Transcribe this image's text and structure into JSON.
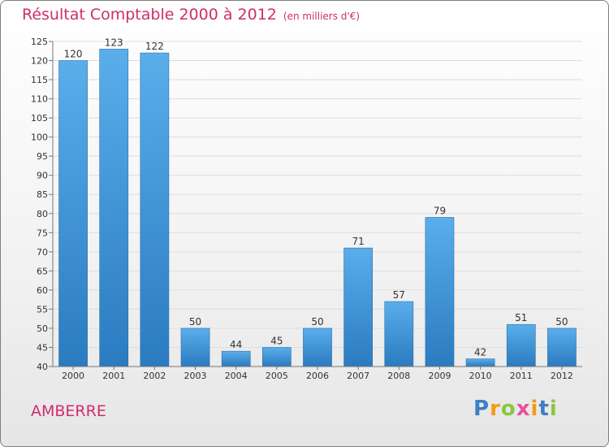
{
  "header": {
    "title": "Résultat Comptable 2000 à 2012",
    "subtitle": "(en milliers d'€)"
  },
  "footer": {
    "city": "AMBERRE",
    "brand": [
      "P",
      "r",
      "o",
      "x",
      "i",
      "t",
      "i"
    ],
    "brand_colors": [
      "#3d7fc3",
      "#f39c12",
      "#8cc63f",
      "#e84f9a",
      "#f39c12",
      "#3d7fc3",
      "#8cc63f"
    ]
  },
  "colors": {
    "accent": "#d02c6e",
    "bar": "#3e94d8"
  },
  "chart_data": {
    "type": "bar",
    "title": "Résultat Comptable 2000 à 2012",
    "subtitle": "(en milliers d'€)",
    "categories": [
      "2000",
      "2001",
      "2002",
      "2003",
      "2004",
      "2005",
      "2006",
      "2007",
      "2008",
      "2009",
      "2010",
      "2011",
      "2012"
    ],
    "values": [
      120,
      123,
      122,
      50,
      44,
      45,
      50,
      71,
      57,
      79,
      42,
      51,
      50
    ],
    "xlabel": "",
    "ylabel": "",
    "ylim": [
      40,
      125
    ],
    "yticks": [
      40,
      45,
      50,
      55,
      60,
      65,
      70,
      75,
      80,
      85,
      90,
      95,
      100,
      105,
      110,
      115,
      120,
      125
    ],
    "grid": true
  }
}
